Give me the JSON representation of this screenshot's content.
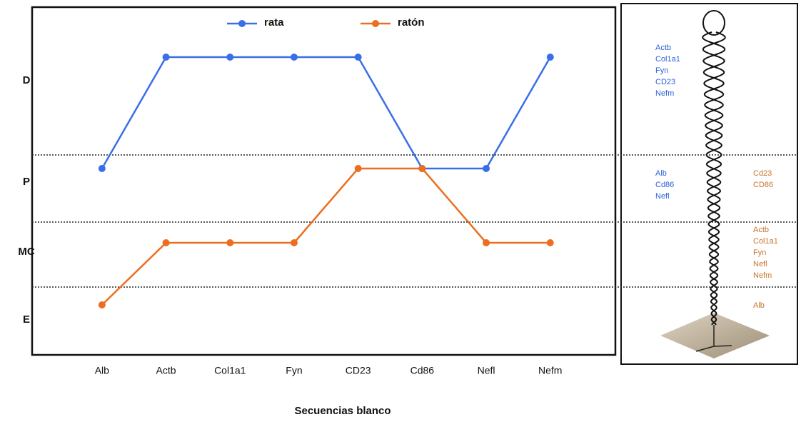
{
  "chart_data": {
    "type": "line",
    "x_label": "Secuencias blanco",
    "categories": [
      "Alb",
      "Actb",
      "Col1a1",
      "Fyn",
      "CD23",
      "Cd86",
      "Nefl",
      "Nefm"
    ],
    "y_categories": [
      "E",
      "MC",
      "P",
      "D"
    ],
    "series": [
      {
        "name": "rata",
        "color": "#3a6ee8",
        "values": [
          "P",
          "D",
          "D",
          "D",
          "D",
          "P",
          "P",
          "D"
        ]
      },
      {
        "name": "ratón",
        "color": "#ec6e1e",
        "values": [
          "E",
          "MC",
          "MC",
          "MC",
          "P",
          "P",
          "MC",
          "MC"
        ]
      }
    ]
  },
  "side_panel": {
    "rata_lists": [
      [
        "Actb",
        "Col1a1",
        "Fyn",
        "CD23",
        "Nefm"
      ],
      [
        "Alb",
        "Cd86",
        "Nefl"
      ]
    ],
    "raton_lists": [
      [
        "Cd23",
        "CD86"
      ],
      [
        "Actb",
        "Col1a1",
        "Fyn",
        "Nefl",
        "Nefm"
      ],
      [
        "Alb"
      ]
    ]
  }
}
